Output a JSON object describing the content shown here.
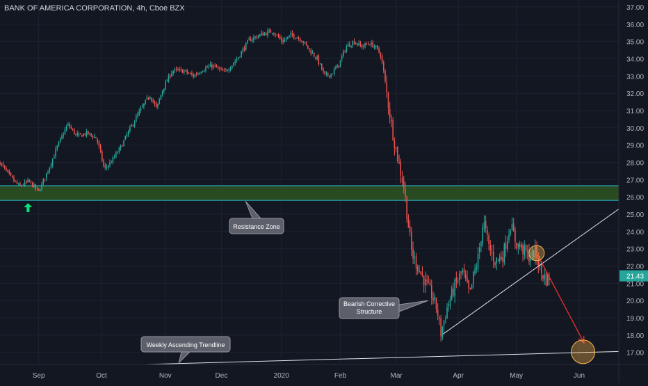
{
  "chart_data": {
    "type": "candlestick",
    "title": "BANK OF AMERICA CORPORATION, 4h, Cboe BZX",
    "ylim": [
      16.3,
      37.4
    ],
    "y_ticks": [
      "17.00",
      "18.00",
      "19.00",
      "20.00",
      "21.00",
      "22.00",
      "23.00",
      "24.00",
      "25.00",
      "26.00",
      "27.00",
      "28.00",
      "29.00",
      "30.00",
      "31.00",
      "32.00",
      "33.00",
      "34.00",
      "35.00",
      "36.00",
      "37.00"
    ],
    "x_ticks": [
      {
        "label": "Sep",
        "bar": 40
      },
      {
        "label": "Oct",
        "bar": 105
      },
      {
        "label": "Nov",
        "bar": 171
      },
      {
        "label": "Dec",
        "bar": 229
      },
      {
        "label": "2020",
        "bar": 291
      },
      {
        "label": "Feb",
        "bar": 352
      },
      {
        "label": "Mar",
        "bar": 410
      },
      {
        "label": "Apr",
        "bar": 474
      },
      {
        "label": "May",
        "bar": 534
      },
      {
        "label": "Jun",
        "bar": 599
      }
    ],
    "bar_range": [
      0,
      640
    ],
    "last_price": "21.43",
    "colors": {
      "up": "#26a69a",
      "down": "#ef5350",
      "zone_fill": "#2a4a22",
      "zone_line": "#26c6da"
    },
    "price_path": [
      [
        0,
        28.0
      ],
      [
        10,
        27.2
      ],
      [
        20,
        26.6
      ],
      [
        30,
        26.9
      ],
      [
        40,
        26.3
      ],
      [
        50,
        27.6
      ],
      [
        60,
        29.0
      ],
      [
        70,
        30.2
      ],
      [
        80,
        29.5
      ],
      [
        90,
        29.7
      ],
      [
        100,
        29.4
      ],
      [
        108,
        27.6
      ],
      [
        116,
        28.1
      ],
      [
        125,
        28.9
      ],
      [
        135,
        30.0
      ],
      [
        145,
        31.0
      ],
      [
        155,
        31.9
      ],
      [
        162,
        31.1
      ],
      [
        168,
        32.2
      ],
      [
        178,
        33.3
      ],
      [
        190,
        33.3
      ],
      [
        200,
        33.0
      ],
      [
        210,
        33.4
      ],
      [
        220,
        33.6
      ],
      [
        232,
        33.2
      ],
      [
        244,
        33.9
      ],
      [
        258,
        35.1
      ],
      [
        270,
        35.4
      ],
      [
        282,
        35.6
      ],
      [
        292,
        35.0
      ],
      [
        302,
        35.4
      ],
      [
        312,
        35.1
      ],
      [
        320,
        34.5
      ],
      [
        328,
        34.0
      ],
      [
        336,
        33.0
      ],
      [
        342,
        33.1
      ],
      [
        350,
        33.6
      ],
      [
        358,
        34.7
      ],
      [
        366,
        35.0
      ],
      [
        374,
        34.7
      ],
      [
        382,
        34.9
      ],
      [
        388,
        34.7
      ],
      [
        394,
        34.2
      ],
      [
        398,
        32.8
      ],
      [
        402,
        31.2
      ],
      [
        406,
        29.8
      ],
      [
        410,
        28.6
      ],
      [
        413,
        27.8
      ],
      [
        418,
        26.5
      ],
      [
        422,
        24.5
      ],
      [
        426,
        22.7
      ],
      [
        432,
        22.0
      ],
      [
        440,
        21.0
      ],
      [
        446,
        20.4
      ],
      [
        452,
        19.5
      ],
      [
        456,
        18.1
      ],
      [
        462,
        19.5
      ],
      [
        470,
        20.8
      ],
      [
        478,
        21.7
      ],
      [
        486,
        20.3
      ],
      [
        490,
        21.5
      ],
      [
        494,
        22.3
      ],
      [
        500,
        24.6
      ],
      [
        506,
        23.0
      ],
      [
        512,
        22.3
      ],
      [
        520,
        22.6
      ],
      [
        528,
        24.4
      ],
      [
        534,
        23.3
      ],
      [
        540,
        23.0
      ],
      [
        548,
        22.5
      ],
      [
        554,
        22.8
      ],
      [
        560,
        21.6
      ],
      [
        565,
        21.2
      ],
      [
        569,
        21.43
      ]
    ],
    "resistance_zone": {
      "from": 25.8,
      "to": 26.65
    },
    "trendline_weekly": {
      "from": [
        150,
        16.3
      ],
      "to": [
        640,
        17.05
      ]
    },
    "trendline_ascending": {
      "from": [
        458,
        18.05
      ],
      "to": [
        640,
        25.3
      ]
    },
    "projection_arrow": {
      "from": [
        555,
        22.75
      ],
      "to": [
        604,
        17.55
      ]
    },
    "highlight_circles": [
      {
        "bar": 555,
        "price": 22.75,
        "r": 11
      },
      {
        "bar": 603,
        "price": 17.03,
        "r": 17
      }
    ],
    "up_arrow": {
      "bar": 29,
      "price": 25.4
    },
    "callouts": [
      {
        "name": "resistance-zone-callout",
        "text": "Resistance Zone",
        "anchor": [
          254,
          25.75
        ]
      },
      {
        "name": "bearish-structure-callout",
        "text": "Bearish Corrective Structure",
        "anchor": [
          443,
          20.0
        ]
      },
      {
        "name": "weekly-trendline-callout",
        "text": "Weekly Ascending Trendline",
        "anchor": [
          185,
          16.4
        ]
      }
    ]
  }
}
